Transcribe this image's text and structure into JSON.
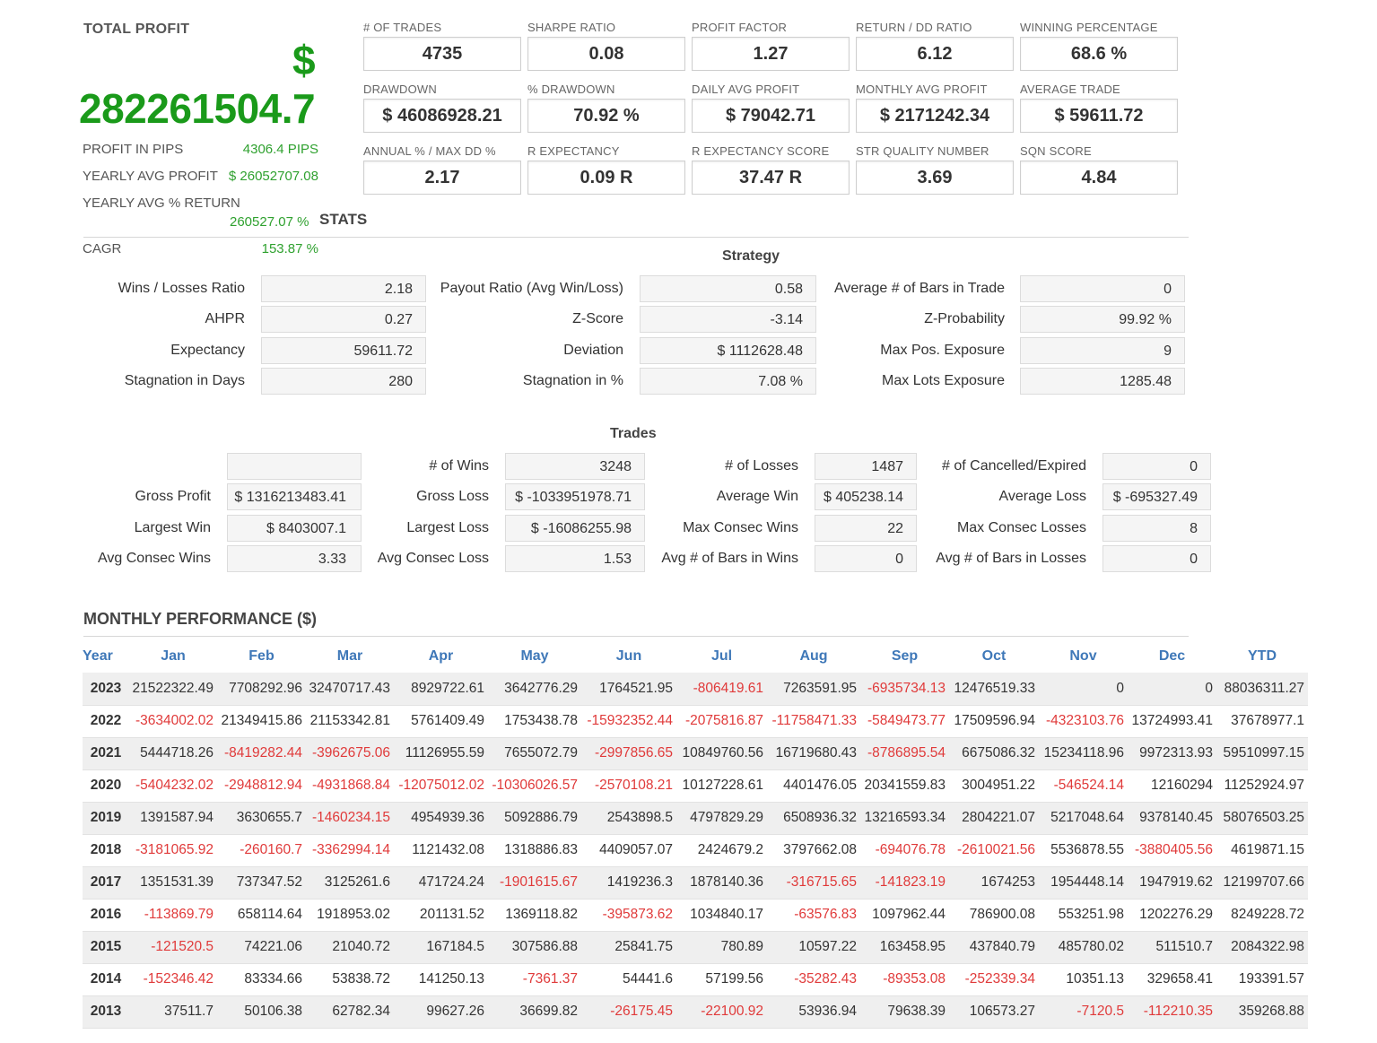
{
  "total_profit": {
    "title": "TOTAL PROFIT",
    "currency": "$",
    "value": "282261504.7",
    "rows": [
      {
        "label": "PROFIT IN PIPS",
        "value": "4306.4 PIPS"
      },
      {
        "label": "YEARLY AVG PROFIT",
        "value": "$ 26052707.08"
      },
      {
        "label": "YEARLY AVG % RETURN",
        "value": "260527.07 %"
      },
      {
        "label": "CAGR",
        "value": "153.87 %"
      }
    ],
    "stats_label": "STATS"
  },
  "metrics": [
    {
      "label": "# OF TRADES",
      "value": "4735"
    },
    {
      "label": "SHARPE RATIO",
      "value": "0.08"
    },
    {
      "label": "PROFIT FACTOR",
      "value": "1.27"
    },
    {
      "label": "RETURN / DD RATIO",
      "value": "6.12"
    },
    {
      "label": "WINNING PERCENTAGE",
      "value": "68.6 %"
    },
    {
      "label": "DRAWDOWN",
      "value": "$ 46086928.21"
    },
    {
      "label": "% DRAWDOWN",
      "value": "70.92 %"
    },
    {
      "label": "DAILY AVG PROFIT",
      "value": "$ 79042.71"
    },
    {
      "label": "MONTHLY AVG PROFIT",
      "value": "$ 2171242.34"
    },
    {
      "label": "AVERAGE TRADE",
      "value": "$ 59611.72"
    },
    {
      "label": "ANNUAL % / MAX DD %",
      "value": "2.17"
    },
    {
      "label": "R EXPECTANCY",
      "value": "0.09 R"
    },
    {
      "label": "R EXPECTANCY SCORE",
      "value": "37.47 R"
    },
    {
      "label": "STR QUALITY NUMBER",
      "value": "3.69"
    },
    {
      "label": "SQN SCORE",
      "value": "4.84"
    }
  ],
  "strategy": {
    "title": "Strategy",
    "rows": [
      [
        {
          "label": "Wins / Losses Ratio",
          "value": "2.18"
        },
        {
          "label": "Payout Ratio (Avg Win/Loss)",
          "value": "0.58"
        },
        {
          "label": "Average # of Bars in Trade",
          "value": "0"
        }
      ],
      [
        {
          "label": "AHPR",
          "value": "0.27"
        },
        {
          "label": "Z-Score",
          "value": "-3.14"
        },
        {
          "label": "Z-Probability",
          "value": "99.92 %"
        }
      ],
      [
        {
          "label": "Expectancy",
          "value": "59611.72"
        },
        {
          "label": "Deviation",
          "value": "$ 1112628.48"
        },
        {
          "label": "Max Pos. Exposure",
          "value": "9"
        }
      ],
      [
        {
          "label": "Stagnation in Days",
          "value": "280"
        },
        {
          "label": "Stagnation in %",
          "value": "7.08 %"
        },
        {
          "label": "Max Lots Exposure",
          "value": "1285.48"
        }
      ]
    ]
  },
  "trades": {
    "title": "Trades",
    "rows": [
      [
        {
          "label": "",
          "value": ""
        },
        {
          "label": "# of Wins",
          "value": "3248"
        },
        {
          "label": "# of Losses",
          "value": "1487"
        },
        {
          "label": "# of Cancelled/Expired",
          "value": "0"
        }
      ],
      [
        {
          "label": "Gross Profit",
          "value": "$ 1316213483.41"
        },
        {
          "label": "Gross Loss",
          "value": "$ -1033951978.71"
        },
        {
          "label": "Average Win",
          "value": "$ 405238.14"
        },
        {
          "label": "Average Loss",
          "value": "$ -695327.49"
        }
      ],
      [
        {
          "label": "Largest Win",
          "value": "$ 8403007.1"
        },
        {
          "label": "Largest Loss",
          "value": "$ -16086255.98"
        },
        {
          "label": "Max Consec Wins",
          "value": "22"
        },
        {
          "label": "Max Consec Losses",
          "value": "8"
        }
      ],
      [
        {
          "label": "Avg Consec Wins",
          "value": "3.33"
        },
        {
          "label": "Avg Consec Loss",
          "value": "1.53"
        },
        {
          "label": "Avg # of Bars in Wins",
          "value": "0"
        },
        {
          "label": "Avg # of Bars in Losses",
          "value": "0"
        }
      ]
    ]
  },
  "monthly": {
    "title": "MONTHLY PERFORMANCE ($)",
    "headers": [
      "Year",
      "Jan",
      "Feb",
      "Mar",
      "Apr",
      "May",
      "Jun",
      "Jul",
      "Aug",
      "Sep",
      "Oct",
      "Nov",
      "Dec",
      "YTD"
    ],
    "rows": [
      [
        "2023",
        "21522322.49",
        "7708292.96",
        "32470717.43",
        "8929722.61",
        "3642776.29",
        "1764521.95",
        "-806419.61",
        "7263591.95",
        "-6935734.13",
        "12476519.33",
        "0",
        "0",
        "88036311.27"
      ],
      [
        "2022",
        "-3634002.02",
        "21349415.86",
        "21153342.81",
        "5761409.49",
        "1753438.78",
        "-15932352.44",
        "-2075816.87",
        "-11758471.33",
        "-5849473.77",
        "17509596.94",
        "-4323103.76",
        "13724993.41",
        "37678977.1"
      ],
      [
        "2021",
        "5444718.26",
        "-8419282.44",
        "-3962675.06",
        "11126955.59",
        "7655072.79",
        "-2997856.65",
        "10849760.56",
        "16719680.43",
        "-8786895.54",
        "6675086.32",
        "15234118.96",
        "9972313.93",
        "59510997.15"
      ],
      [
        "2020",
        "-5404232.02",
        "-2948812.94",
        "-4931868.84",
        "-12075012.02",
        "-10306026.57",
        "-2570108.21",
        "10127228.61",
        "4401476.05",
        "20341559.83",
        "3004951.22",
        "-546524.14",
        "12160294",
        "11252924.97"
      ],
      [
        "2019",
        "1391587.94",
        "3630655.7",
        "-1460234.15",
        "4954939.36",
        "5092886.79",
        "2543898.5",
        "4797829.29",
        "6508936.32",
        "13216593.34",
        "2804221.07",
        "5217048.64",
        "9378140.45",
        "58076503.25"
      ],
      [
        "2018",
        "-3181065.92",
        "-260160.7",
        "-3362994.14",
        "1121432.08",
        "1318886.83",
        "4409057.07",
        "2424679.2",
        "3797662.08",
        "-694076.78",
        "-2610021.56",
        "5536878.55",
        "-3880405.56",
        "4619871.15"
      ],
      [
        "2017",
        "1351531.39",
        "737347.52",
        "3125261.6",
        "471724.24",
        "-1901615.67",
        "1419236.3",
        "1878140.36",
        "-316715.65",
        "-141823.19",
        "1674253",
        "1954448.14",
        "1947919.62",
        "12199707.66"
      ],
      [
        "2016",
        "-113869.79",
        "658114.64",
        "1918953.02",
        "201131.52",
        "1369118.82",
        "-395873.62",
        "1034840.17",
        "-63576.83",
        "1097962.44",
        "786900.08",
        "553251.98",
        "1202276.29",
        "8249228.72"
      ],
      [
        "2015",
        "-121520.5",
        "74221.06",
        "21040.72",
        "167184.5",
        "307586.88",
        "25841.75",
        "780.89",
        "10597.22",
        "163458.95",
        "437840.79",
        "485780.02",
        "511510.7",
        "2084322.98"
      ],
      [
        "2014",
        "-152346.42",
        "83334.66",
        "53838.72",
        "141250.13",
        "-7361.37",
        "54441.6",
        "57199.56",
        "-35282.43",
        "-89353.08",
        "-252339.34",
        "10351.13",
        "329658.41",
        "193391.57"
      ],
      [
        "2013",
        "37511.7",
        "50106.38",
        "62782.34",
        "99627.26",
        "36699.82",
        "-26175.45",
        "-22100.92",
        "53936.94",
        "79638.39",
        "106573.27",
        "-7120.5",
        "-112210.35",
        "359268.88"
      ]
    ]
  }
}
